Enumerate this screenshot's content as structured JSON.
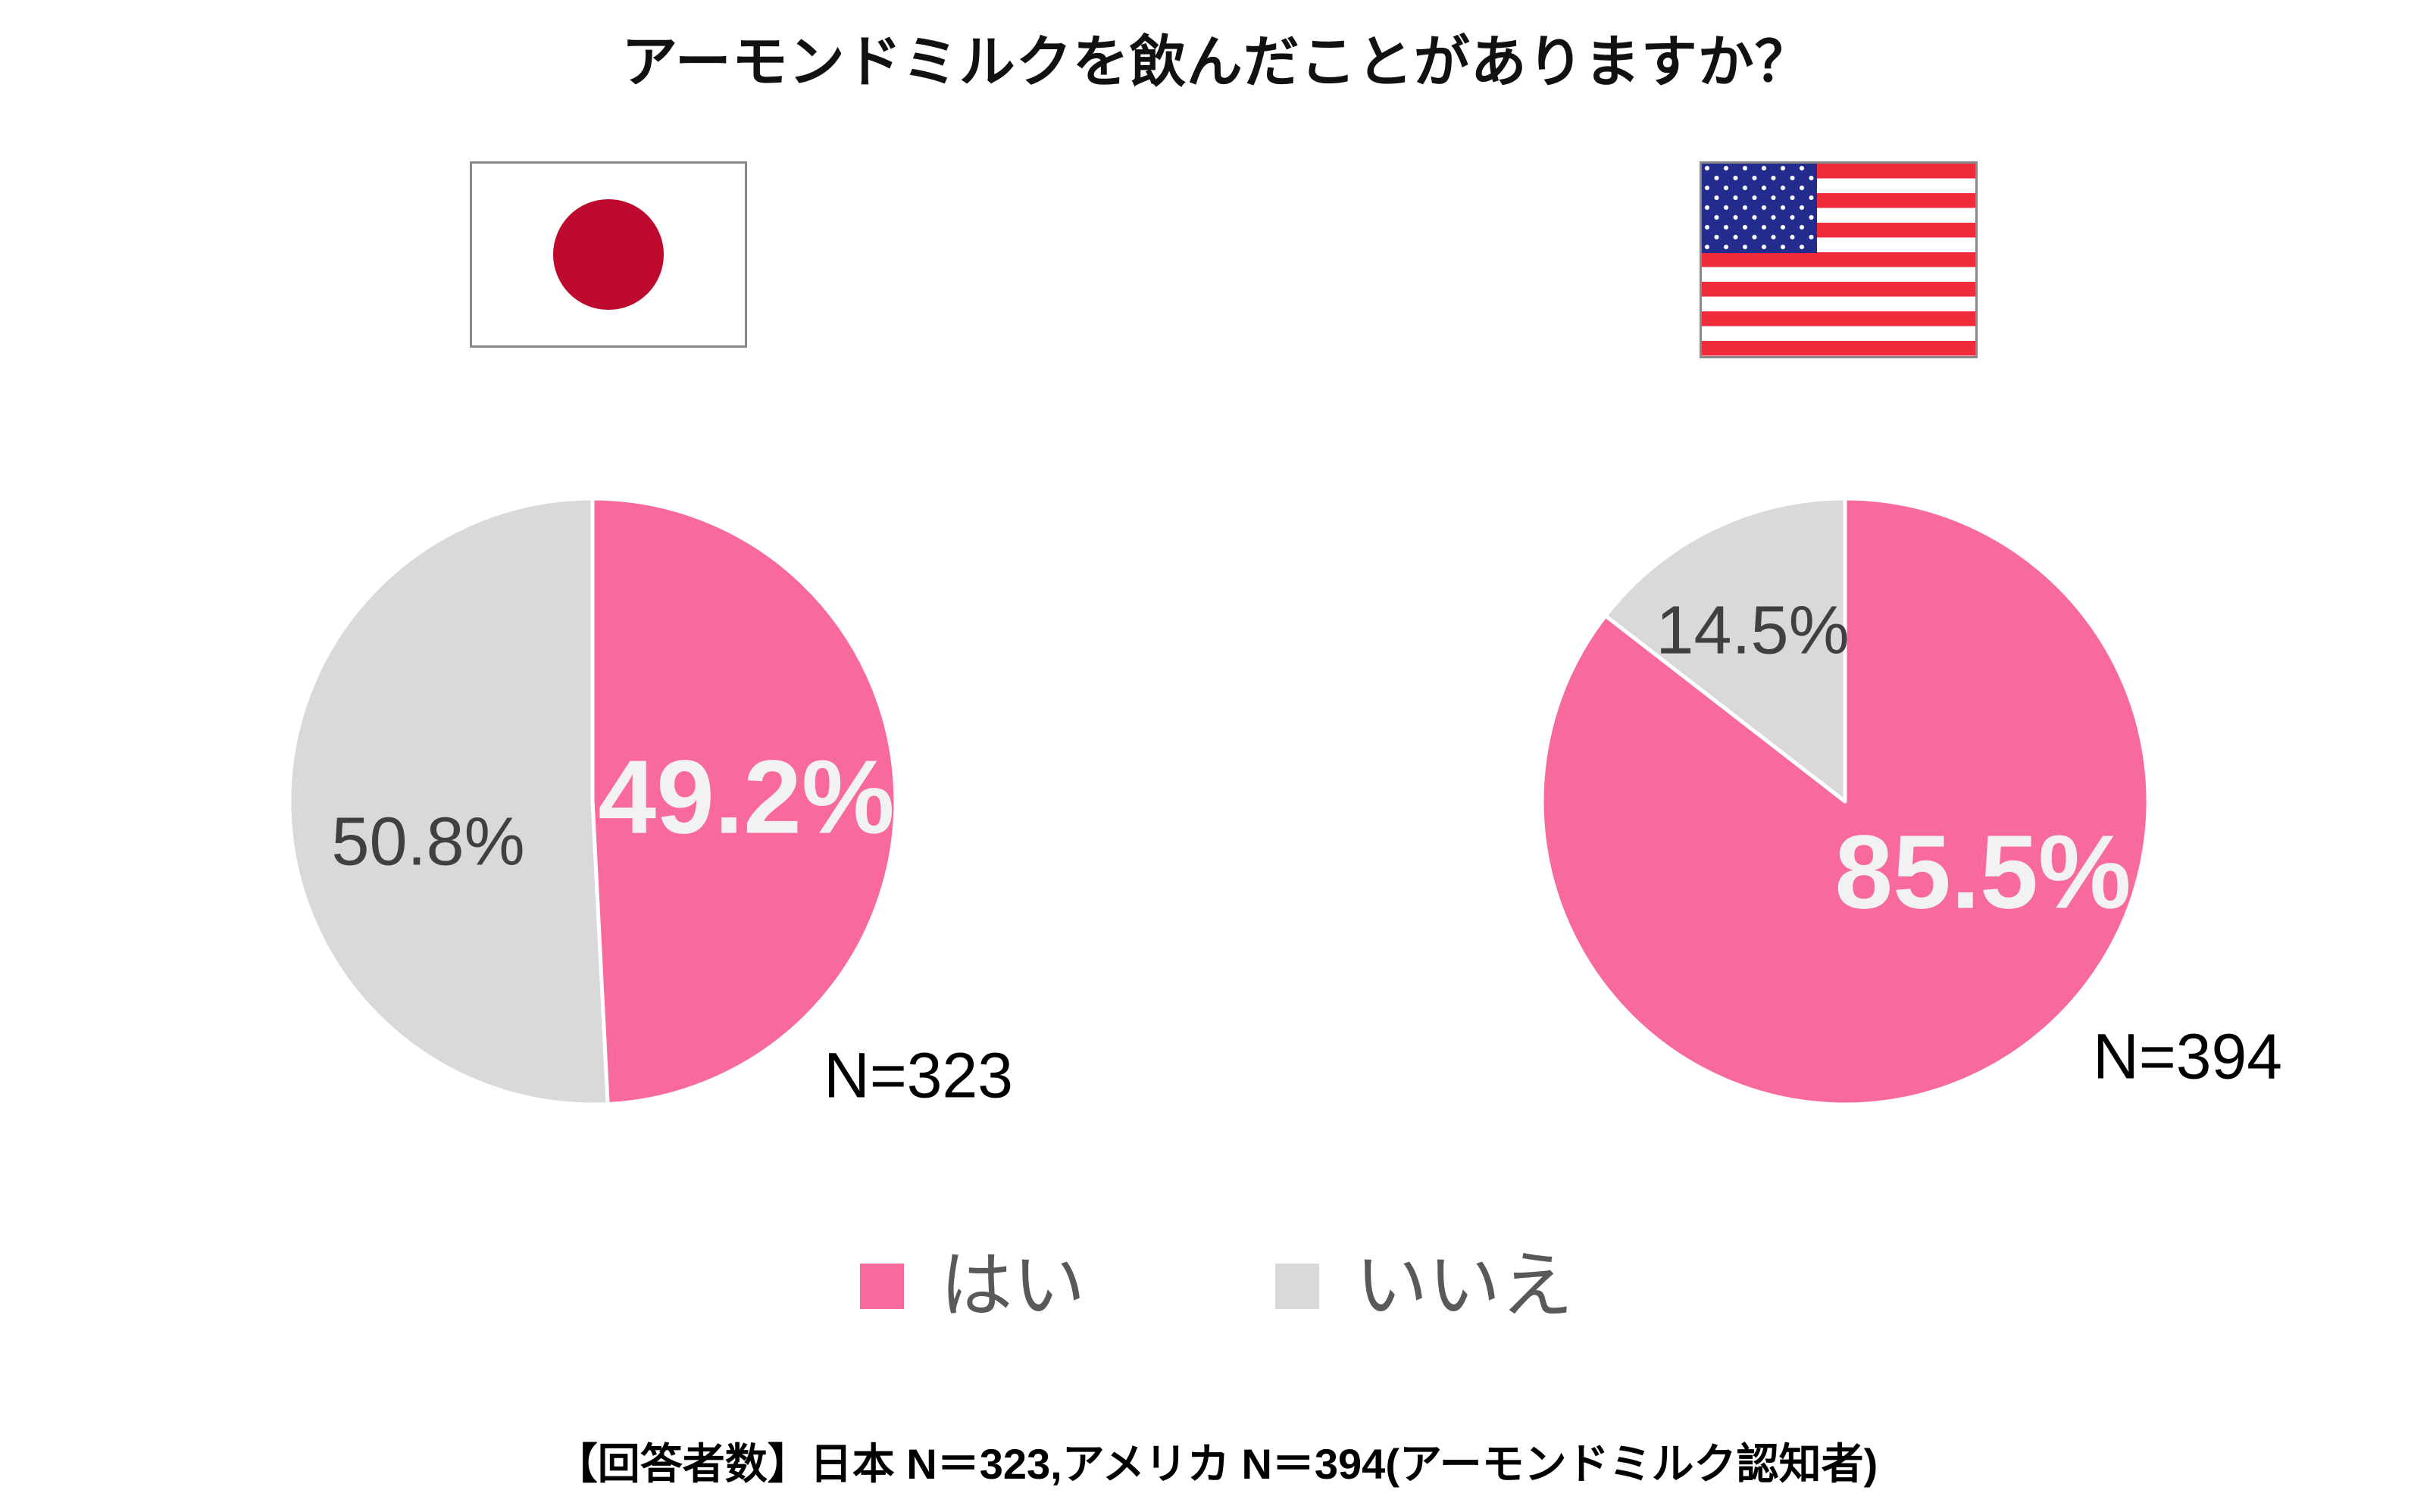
{
  "title": "アーモンドミルクを飲んだことがありますか？",
  "colors": {
    "yes_pink": "#F86A9D",
    "no_gray": "#D9D9D9",
    "light_value_label": "#F2F2F2",
    "dark_value_label": "#404040",
    "legend_text": "#595959",
    "japan_flag_red": "#BE0A2E",
    "us_flag_red": "#EF2B3C",
    "us_flag_blue": "#232C8C"
  },
  "flags": [
    {
      "name": "japan-flag"
    },
    {
      "name": "us-flag"
    }
  ],
  "chart_data": [
    {
      "type": "pie",
      "country": "日本",
      "n_label": "N=323",
      "slices": [
        {
          "label": "はい",
          "value": 49.2,
          "display": "49.2%",
          "color": "#F86A9D"
        },
        {
          "label": "いいえ",
          "value": 50.8,
          "display": "50.8%",
          "color": "#D9D9D9"
        }
      ],
      "start_angle_deg": 0,
      "direction": "clockwise"
    },
    {
      "type": "pie",
      "country": "アメリカ",
      "n_label": "N=394",
      "slices": [
        {
          "label": "はい",
          "value": 85.5,
          "display": "85.5%",
          "color": "#F86A9D"
        },
        {
          "label": "いいえ",
          "value": 14.5,
          "display": "14.5%",
          "color": "#D9D9D9"
        }
      ],
      "start_angle_deg": 0,
      "direction": "clockwise"
    }
  ],
  "legend": [
    {
      "label": "はい",
      "color": "#F86A9D"
    },
    {
      "label": "いいえ",
      "color": "#D9D9D9"
    }
  ],
  "footnote": "【回答者数】日本 N＝323,アメリカ N＝394(アーモンドミルク認知者)"
}
